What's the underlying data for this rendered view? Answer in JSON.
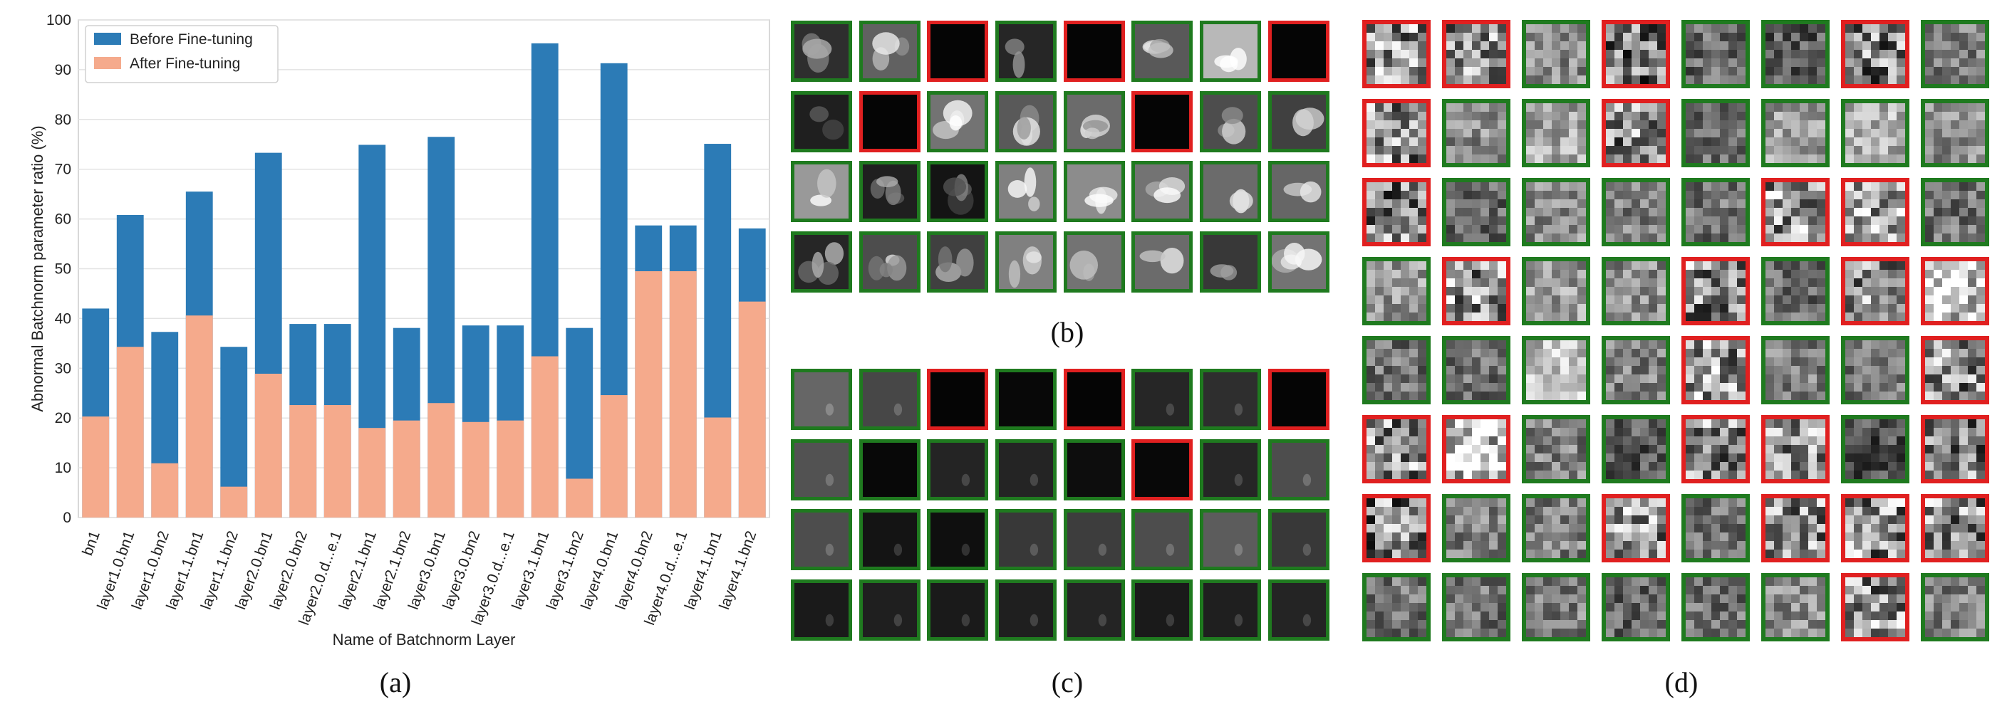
{
  "chart_data": {
    "type": "bar",
    "stacked": "overlay",
    "categories": [
      "bn1",
      "layer1.0.bn1",
      "layer1.0.bn2",
      "layer1.1.bn1",
      "layer1.1.bn2",
      "layer2.0.bn1",
      "layer2.0.bn2",
      "layer2.0.d...e.1",
      "layer2.1.bn1",
      "layer2.1.bn2",
      "layer3.0.bn1",
      "layer3.0.bn2",
      "layer3.0.d...e.1",
      "layer3.1.bn1",
      "layer3.1.bn2",
      "layer4.0.bn1",
      "layer4.0.bn2",
      "layer4.0.d...e.1",
      "layer4.1.bn1",
      "layer4.1.bn2"
    ],
    "series": [
      {
        "name": "Before Fine-tuning",
        "color": "#2c7bb6",
        "values": [
          42.0,
          60.8,
          37.3,
          65.5,
          34.3,
          73.3,
          38.9,
          38.9,
          74.9,
          38.1,
          76.5,
          38.6,
          38.6,
          95.3,
          38.1,
          91.3,
          58.7,
          58.7,
          75.1,
          58.1
        ]
      },
      {
        "name": "After Fine-tuning",
        "color": "#f5aa8c",
        "values": [
          20.3,
          34.3,
          10.9,
          40.6,
          6.2,
          28.9,
          22.6,
          22.6,
          18.0,
          19.5,
          23.0,
          19.2,
          19.5,
          32.4,
          7.8,
          24.6,
          49.5,
          49.5,
          20.1,
          43.4
        ]
      }
    ],
    "title": "",
    "xlabel": "Name of Batchnorm Layer",
    "ylabel": "Abnormal Batchnorm parameter ratio (%)",
    "ylim": [
      0,
      100
    ],
    "yticks": [
      0,
      10,
      20,
      30,
      40,
      50,
      60,
      70,
      80,
      90,
      100
    ],
    "grid": true,
    "legend_position": "top-left"
  },
  "panel_labels": {
    "a": "(a)",
    "b": "(b)",
    "c": "(c)",
    "d": "(d)"
  },
  "colors": {
    "border_green": "#1f7a1f",
    "border_red": "#e02020"
  },
  "grid_b": {
    "rows": 4,
    "cols": 8,
    "style": "feature",
    "borders": [
      "g",
      "g",
      "r",
      "g",
      "r",
      "g",
      "g",
      "r",
      "g",
      "r",
      "g",
      "g",
      "g",
      "r",
      "g",
      "g",
      "g",
      "g",
      "g",
      "g",
      "g",
      "g",
      "g",
      "g",
      "g",
      "g",
      "g",
      "g",
      "g",
      "g",
      "g",
      "g"
    ],
    "tones": [
      0.18,
      0.38,
      0.02,
      0.15,
      0.02,
      0.35,
      0.72,
      0.02,
      0.12,
      0.02,
      0.45,
      0.35,
      0.42,
      0.02,
      0.3,
      0.25,
      0.6,
      0.12,
      0.08,
      0.5,
      0.55,
      0.45,
      0.42,
      0.4,
      0.15,
      0.3,
      0.25,
      0.5,
      0.45,
      0.42,
      0.22,
      0.45
    ]
  },
  "grid_c": {
    "rows": 4,
    "cols": 8,
    "style": "flat",
    "borders": [
      "g",
      "g",
      "r",
      "g",
      "r",
      "g",
      "g",
      "r",
      "g",
      "g",
      "g",
      "g",
      "g",
      "r",
      "g",
      "g",
      "g",
      "g",
      "g",
      "g",
      "g",
      "g",
      "g",
      "g",
      "g",
      "g",
      "g",
      "g",
      "g",
      "g",
      "g",
      "g"
    ],
    "tones": [
      0.4,
      0.28,
      0.02,
      0.03,
      0.02,
      0.15,
      0.18,
      0.02,
      0.32,
      0.03,
      0.14,
      0.14,
      0.05,
      0.03,
      0.15,
      0.3,
      0.3,
      0.08,
      0.06,
      0.22,
      0.24,
      0.3,
      0.36,
      0.22,
      0.1,
      0.12,
      0.1,
      0.12,
      0.14,
      0.1,
      0.12,
      0.14
    ]
  },
  "grid_d": {
    "rows": 8,
    "cols": 8,
    "style": "noise",
    "borders": [
      "r",
      "r",
      "g",
      "r",
      "g",
      "g",
      "r",
      "g",
      "r",
      "g",
      "g",
      "r",
      "g",
      "g",
      "g",
      "g",
      "r",
      "g",
      "g",
      "g",
      "g",
      "r",
      "r",
      "g",
      "g",
      "r",
      "g",
      "g",
      "r",
      "g",
      "r",
      "r",
      "g",
      "g",
      "g",
      "g",
      "r",
      "g",
      "g",
      "r",
      "r",
      "r",
      "g",
      "g",
      "r",
      "r",
      "g",
      "r",
      "r",
      "g",
      "g",
      "r",
      "g",
      "r",
      "r",
      "r",
      "g",
      "g",
      "g",
      "g",
      "g",
      "g",
      "r",
      "g"
    ],
    "tones": [
      0.55,
      0.6,
      0.55,
      0.45,
      0.4,
      0.35,
      0.5,
      0.5,
      0.55,
      0.55,
      0.65,
      0.55,
      0.4,
      0.6,
      0.7,
      0.55,
      0.5,
      0.4,
      0.55,
      0.5,
      0.45,
      0.6,
      0.6,
      0.45,
      0.6,
      0.55,
      0.6,
      0.55,
      0.55,
      0.4,
      0.55,
      0.85,
      0.45,
      0.45,
      0.75,
      0.5,
      0.6,
      0.5,
      0.45,
      0.55,
      0.55,
      0.8,
      0.5,
      0.35,
      0.55,
      0.55,
      0.3,
      0.5,
      0.5,
      0.5,
      0.5,
      0.55,
      0.45,
      0.55,
      0.55,
      0.55,
      0.45,
      0.45,
      0.5,
      0.4,
      0.45,
      0.55,
      0.55,
      0.5
    ]
  }
}
